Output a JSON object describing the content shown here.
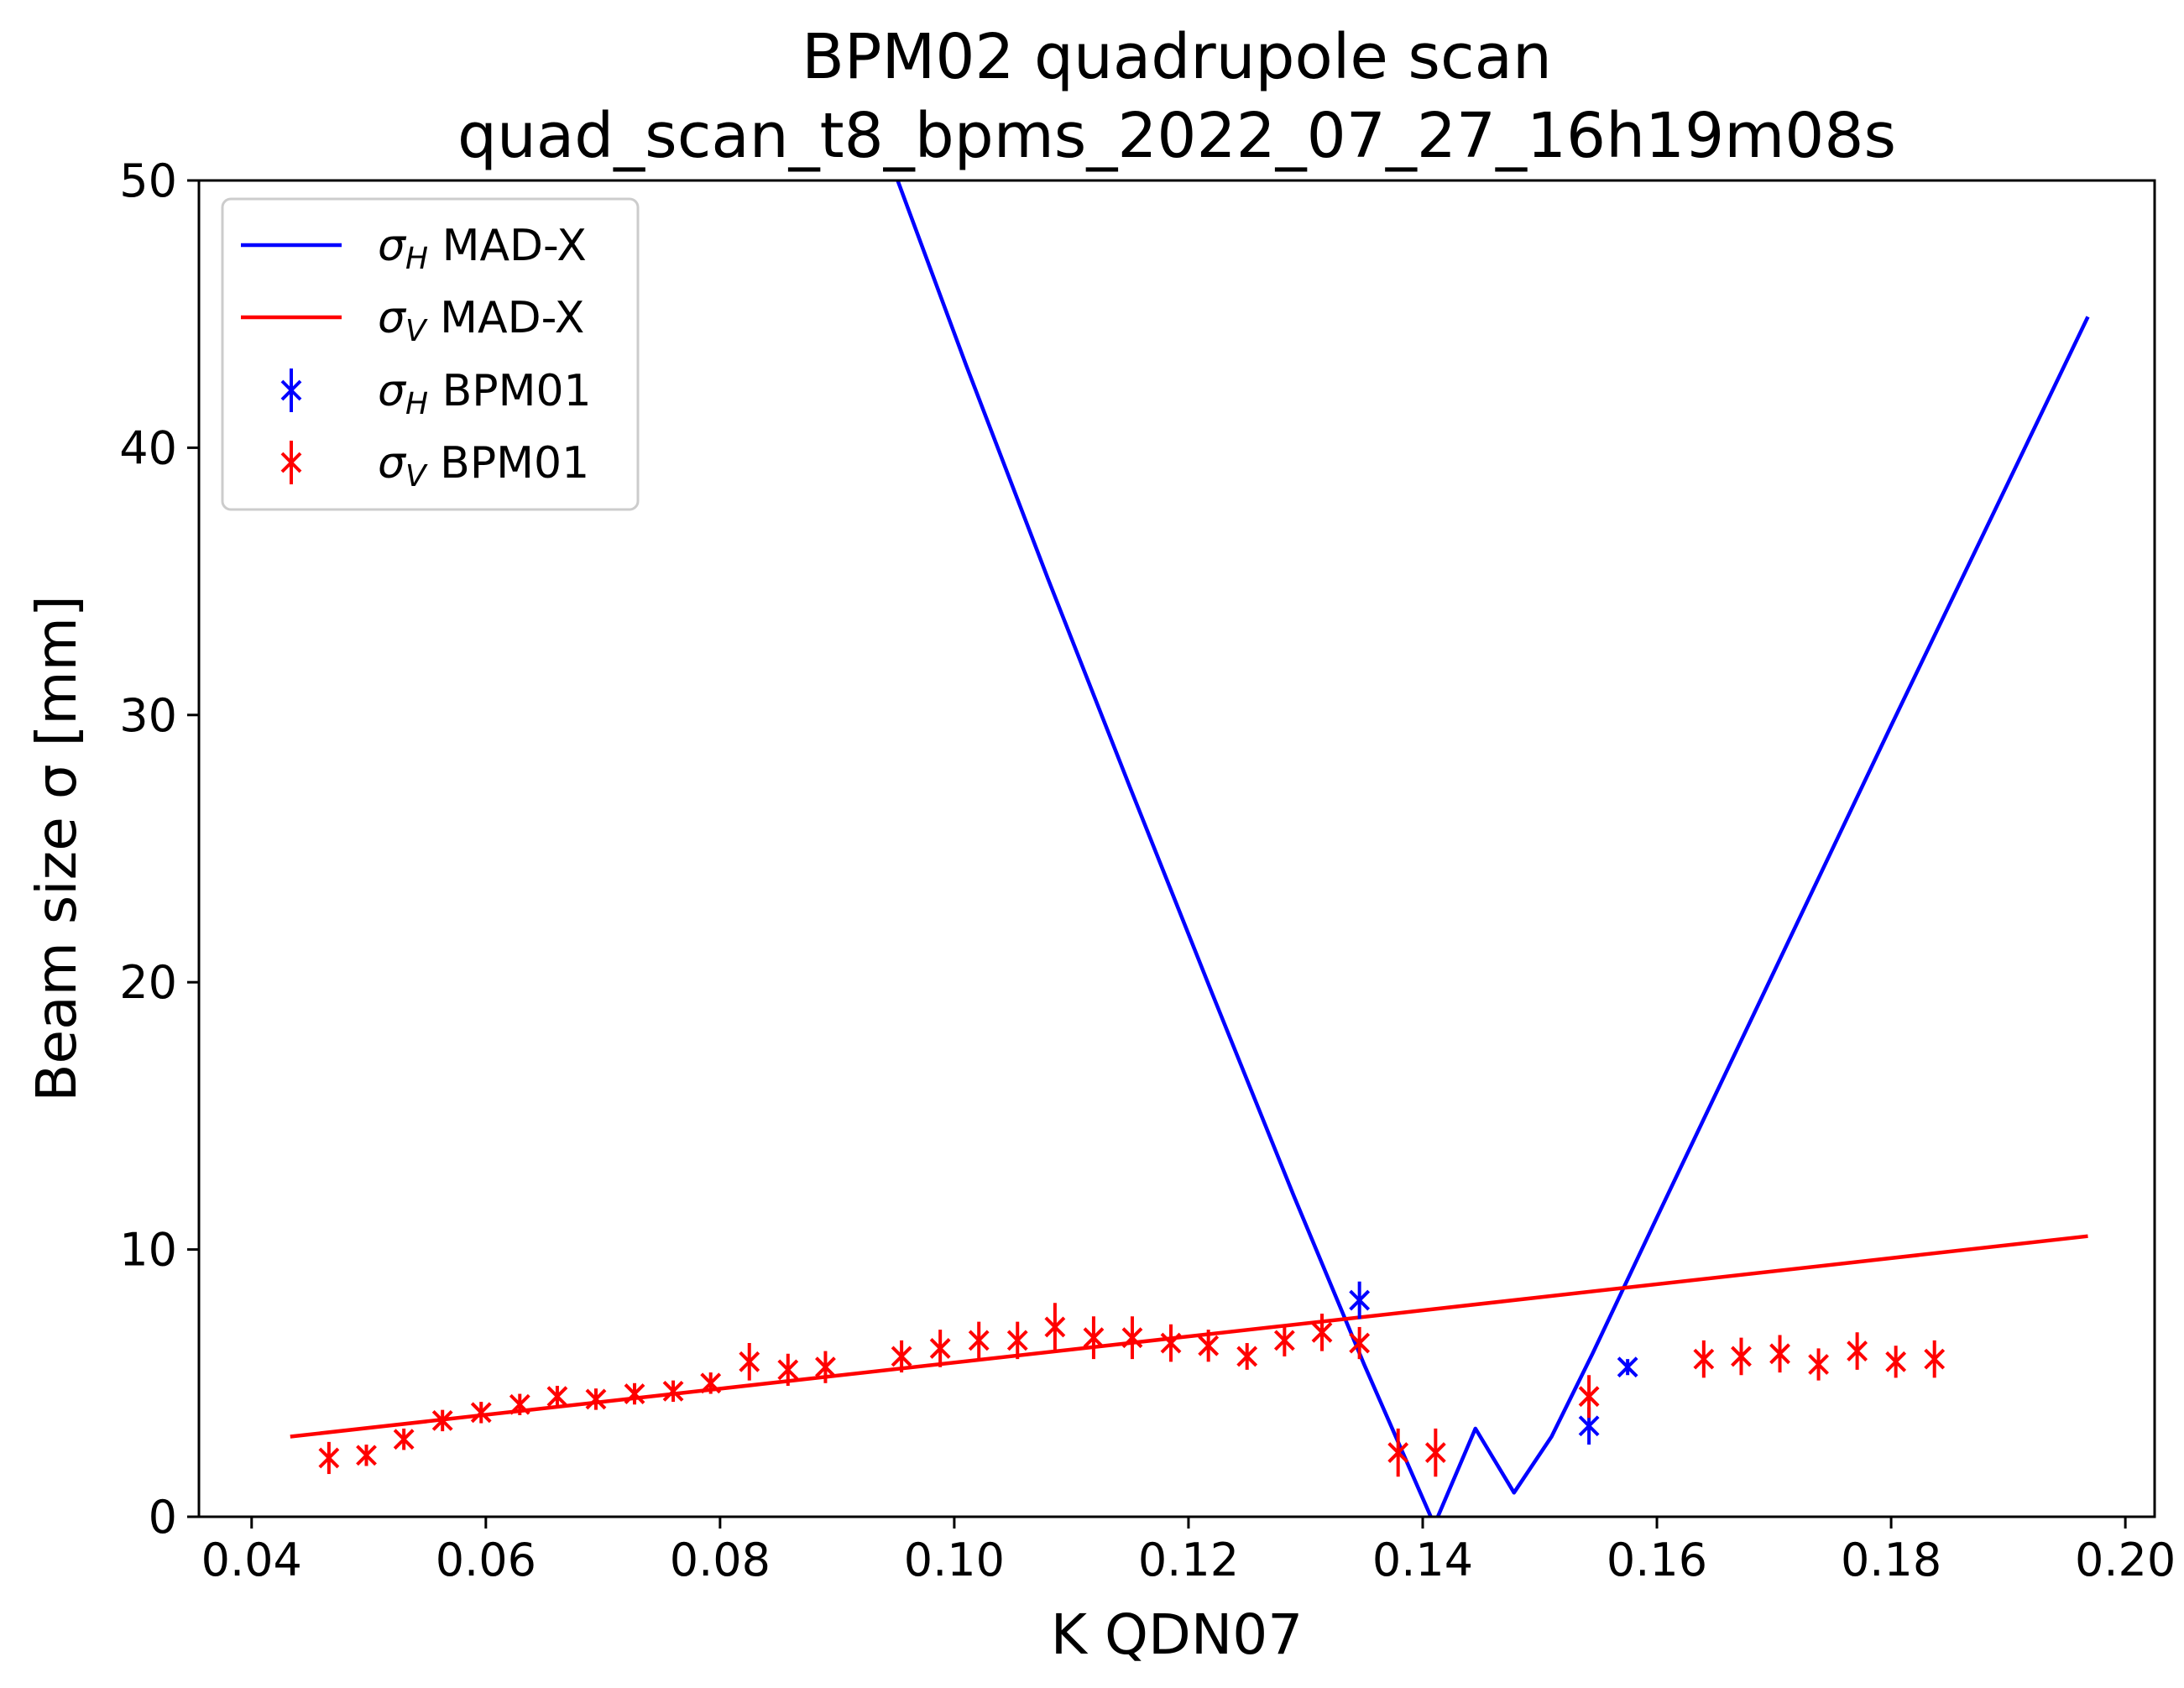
{
  "chart_data": {
    "type": "line",
    "title": "BPM02 quadrupole scan",
    "subtitle": "quad_scan_t8_bpms_2022_07_27_16h19m08s",
    "xlabel": "K QDN07",
    "ylabel": "Beam size σ [mm]",
    "xlim": [
      0.0355,
      0.2025
    ],
    "ylim": [
      0,
      50
    ],
    "xticks": [
      0.04,
      0.06,
      0.08,
      0.1,
      0.12,
      0.14,
      0.16,
      0.18,
      0.2
    ],
    "xtick_labels": [
      "0.04",
      "0.06",
      "0.08",
      "0.10",
      "0.12",
      "0.14",
      "0.16",
      "0.18",
      "0.20"
    ],
    "yticks": [
      0,
      10,
      20,
      30,
      40,
      50
    ],
    "ytick_labels": [
      "0",
      "10",
      "20",
      "30",
      "40",
      "50"
    ],
    "grid": false,
    "legend_position": "top-left",
    "series": [
      {
        "name": "σH MAD-X",
        "legend_base": "σ",
        "legend_sub": "H",
        "legend_rest": " MAD-X",
        "kind": "line",
        "color": "#0000ff",
        "x": [
          0.095,
          0.101,
          0.108,
          0.115,
          0.122,
          0.129,
          0.135,
          0.141,
          0.1445,
          0.1478,
          0.151,
          0.1545,
          0.16,
          0.17,
          0.18,
          0.19,
          0.1968
        ],
        "y": [
          50.2,
          43.1,
          35.1,
          27.3,
          19.6,
          12.0,
          5.7,
          -0.3,
          3.3,
          0.9,
          3.0,
          6.1,
          11.2,
          20.4,
          29.6,
          38.7,
          44.9
        ]
      },
      {
        "name": "σV MAD-X",
        "legend_base": "σ",
        "legend_sub": "V",
        "legend_rest": " MAD-X",
        "kind": "line",
        "color": "#ff0000",
        "x": [
          0.0433,
          0.1968
        ],
        "y": [
          3.0,
          10.5
        ]
      },
      {
        "name": "σH BPM01",
        "legend_base": "σ",
        "legend_sub": "H",
        "legend_rest": " BPM01",
        "kind": "errorbar",
        "color": "#0000ff",
        "x": [
          0.1346,
          0.1542,
          0.1575
        ],
        "y": [
          8.1,
          3.4,
          5.6
        ],
        "err": [
          0.7,
          0.7,
          0.3
        ]
      },
      {
        "name": "σV BPM01",
        "legend_base": "σ",
        "legend_sub": "V",
        "legend_rest": " BPM01",
        "kind": "errorbar",
        "color": "#ff0000",
        "x": [
          0.0466,
          0.0498,
          0.053,
          0.0563,
          0.0596,
          0.0629,
          0.0661,
          0.0694,
          0.0727,
          0.076,
          0.0792,
          0.0825,
          0.0858,
          0.089,
          0.0955,
          0.0988,
          0.1021,
          0.1054,
          0.1086,
          0.1119,
          0.1152,
          0.1185,
          0.1217,
          0.125,
          0.1282,
          0.1314,
          0.1346,
          0.1379,
          0.1411,
          0.1542,
          0.164,
          0.1672,
          0.1705,
          0.1738,
          0.1771,
          0.1804,
          0.1837
        ],
        "y": [
          2.2,
          2.3,
          2.9,
          3.6,
          3.9,
          4.2,
          4.5,
          4.4,
          4.6,
          4.7,
          5.0,
          5.8,
          5.5,
          5.6,
          6.0,
          6.3,
          6.6,
          6.6,
          7.1,
          6.7,
          6.7,
          6.5,
          6.4,
          6.0,
          6.6,
          6.9,
          6.5,
          2.4,
          2.4,
          4.5,
          5.9,
          6.0,
          6.1,
          5.7,
          6.2,
          5.8,
          5.9
        ],
        "err": [
          0.6,
          0.4,
          0.4,
          0.4,
          0.4,
          0.4,
          0.4,
          0.4,
          0.4,
          0.4,
          0.4,
          0.7,
          0.6,
          0.6,
          0.6,
          0.7,
          0.7,
          0.7,
          0.9,
          0.8,
          0.8,
          0.7,
          0.6,
          0.5,
          0.6,
          0.7,
          0.6,
          0.9,
          0.9,
          0.8,
          0.7,
          0.7,
          0.7,
          0.6,
          0.7,
          0.6,
          0.7
        ]
      }
    ]
  }
}
